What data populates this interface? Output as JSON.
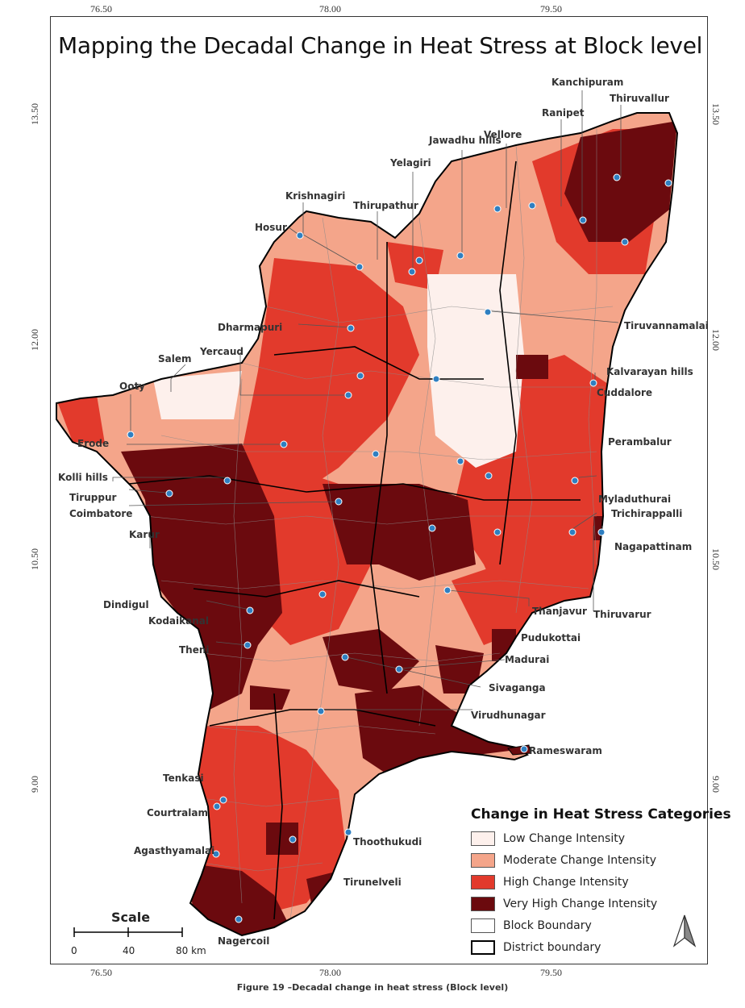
{
  "title": "Mapping the Decadal Change in Heat Stress at Block level",
  "caption": "Figure 19 –Decadal change in heat stress (Block level)",
  "coordinates": {
    "top": [
      "76.50",
      "78.00",
      "79.50"
    ],
    "bottom": [
      "76.50",
      "78.00",
      "79.50"
    ],
    "left": [
      "13.50",
      "12.00",
      "10.50",
      "9.00"
    ],
    "right": [
      "13.50",
      "12.00",
      "10.50",
      "9.00"
    ]
  },
  "places": {
    "kanchipuram": "Kanchipuram",
    "thiruvallur": "Thiruvallur",
    "ranipet": "Ranipet",
    "jawadhu_hills": "Jawadhu hills",
    "vellore": "Vellore",
    "yelagiri": "Yelagiri",
    "krishnagiri": "Krishnagiri",
    "thirupathur": "Thirupathur",
    "hosur": "Hosur",
    "dharmapuri": "Dharmapuri",
    "tiruvannamalai": "Tiruvannamalai",
    "salem": "Salem",
    "yercaud": "Yercaud",
    "kalvarayan_hills": "Kalvarayan hills",
    "ooty": "Ooty",
    "cuddalore": "Cuddalore",
    "erode": "Erode",
    "perambalur": "Perambalur",
    "kolli_hills": "Kolli hills",
    "tiruppur": "Tiruppur",
    "coimbatore": "Coimbatore",
    "myladuthurai": "Myladuthurai",
    "trichirappalli": "Trichirappalli",
    "karur": "Karur",
    "nagapattinam": "Nagapattinam",
    "dindigul": "Dindigul",
    "kodaikanal": "Kodaikanal",
    "thanjavur": "Thanjavur",
    "thiruvarur": "Thiruvarur",
    "pudukottai": "Pudukottai",
    "theni": "Theni",
    "madurai": "Madurai",
    "sivaganga": "Sivaganga",
    "virudhunagar": "Virudhunagar",
    "rameswaram": "Rameswaram",
    "tenkasi": "Tenkasi",
    "courtralam": "Courtralam",
    "thoothukudi": "Thoothukudi",
    "agasthyamalai": "Agasthyamalai",
    "tirunelveli": "Tirunelveli",
    "nagercoil": "Nagercoil"
  },
  "legend": {
    "title": "Change in Heat Stress Categories",
    "items": [
      {
        "label": "Low Change Intensity",
        "color": "#fdf0ec"
      },
      {
        "label": "Moderate Change Intensity",
        "color": "#f4a58a"
      },
      {
        "label": "High Change Intensity",
        "color": "#e23a2c"
      },
      {
        "label": "Very High Change Intensity",
        "color": "#6b0a0e"
      },
      {
        "label": "Block Boundary",
        "color": "#ffffff"
      },
      {
        "label": "District boundary",
        "color": "#ffffff"
      }
    ]
  },
  "scale": {
    "title": "Scale",
    "ticks": [
      "0",
      "40",
      "80 km"
    ]
  },
  "colors": {
    "low": "#fdf0ec",
    "moderate": "#f4a58a",
    "high": "#e23a2c",
    "very_high": "#6b0a0e",
    "marker": "#2f7fc1"
  }
}
